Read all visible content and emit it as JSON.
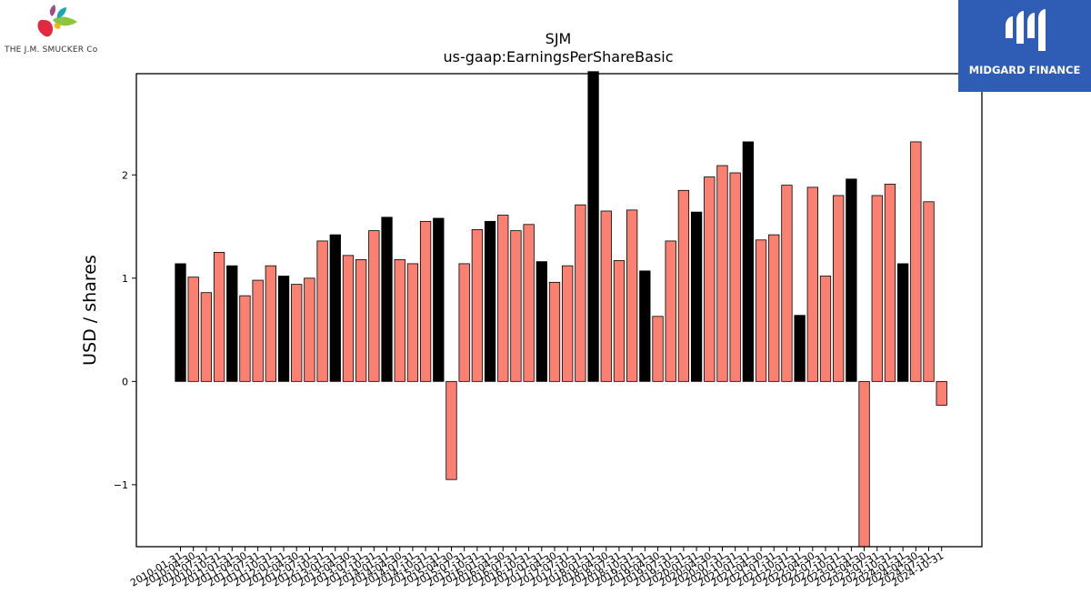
{
  "logos": {
    "left": "THE J.M. SMUCKER Co",
    "right": "MIDGARD FINANCE"
  },
  "chart_data": {
    "type": "bar",
    "title": "SJM",
    "subtitle": "us-gaap:EarningsPerShareBasic",
    "xlabel": "",
    "ylabel": "USD / shares",
    "ylim": [
      -1.6,
      2.98
    ],
    "yticks": [
      -1,
      0,
      1,
      2
    ],
    "grid": false,
    "colors": {
      "quarterly": "#fa8072",
      "annual": "#000000",
      "edge": "#000000"
    },
    "tick_labels": [
      "2010-01-31",
      "2010-04-30",
      "2010-07-31",
      "2010-10-31",
      "2011-01-31",
      "2011-04-30",
      "2011-07-31",
      "2011-10-31",
      "2012-01-31",
      "2012-04-30",
      "2012-07-31",
      "2012-10-31",
      "2013-01-31",
      "2013-04-30",
      "2013-07-31",
      "2013-10-31",
      "2014-01-31",
      "2014-04-30",
      "2014-07-31",
      "2014-10-31",
      "2015-01-31",
      "2015-04-30",
      "2015-07-31",
      "2015-10-31",
      "2016-01-31",
      "2016-04-30",
      "2016-07-31",
      "2016-10-31",
      "2017-01-31",
      "2017-04-30",
      "2017-07-31",
      "2017-10-31",
      "2018-01-31",
      "2018-04-30",
      "2018-07-31",
      "2018-10-31",
      "2019-01-31",
      "2019-04-30",
      "2019-07-31",
      "2019-10-31",
      "2020-01-31",
      "2020-04-30",
      "2020-07-31",
      "2020-10-31",
      "2021-01-31",
      "2021-04-30",
      "2021-07-31",
      "2021-10-31",
      "2022-01-31",
      "2022-04-30",
      "2022-07-31",
      "2022-10-31",
      "2023-01-31",
      "2023-04-30",
      "2023-07-31",
      "2023-10-31",
      "2024-01-31",
      "2024-04-30",
      "2024-07-31",
      "2024-10-31"
    ],
    "series": [
      {
        "values": [
          1.14,
          1.01,
          0.86,
          1.25,
          1.12,
          0.83,
          0.98,
          1.12,
          1.02,
          0.94,
          1.0,
          1.36,
          1.42,
          1.22,
          1.18,
          1.46,
          1.59,
          1.18,
          1.14,
          1.55,
          1.58,
          -0.95,
          1.14,
          1.47,
          1.55,
          1.61,
          1.46,
          1.52,
          1.16,
          0.96,
          1.12,
          1.71,
          3.0,
          1.65,
          1.17,
          1.66,
          1.07,
          0.63,
          1.36,
          1.85,
          1.64,
          1.98,
          2.09,
          2.02,
          2.32,
          1.37,
          1.42,
          1.9,
          0.64,
          1.88,
          1.02,
          1.8,
          1.96,
          -1.6,
          1.8,
          1.91,
          1.14,
          2.32,
          1.74,
          -0.23
        ],
        "annual": [
          1,
          0,
          0,
          0,
          1,
          0,
          0,
          0,
          1,
          0,
          0,
          0,
          1,
          0,
          0,
          0,
          1,
          0,
          0,
          0,
          1,
          0,
          0,
          0,
          1,
          0,
          0,
          0,
          1,
          0,
          0,
          0,
          1,
          0,
          0,
          0,
          1,
          0,
          0,
          0,
          1,
          0,
          0,
          0,
          1,
          0,
          0,
          0,
          1,
          0,
          0,
          0,
          1,
          0,
          0,
          0,
          1,
          0,
          0,
          0
        ]
      }
    ]
  }
}
